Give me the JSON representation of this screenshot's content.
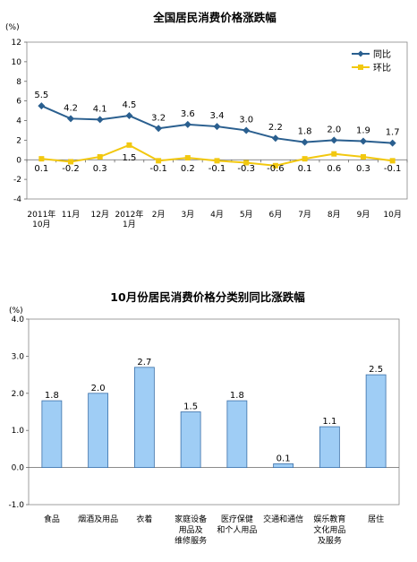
{
  "chart_data": [
    {
      "type": "line",
      "title": "全国居民消费价格涨跌幅",
      "unit_label": "(%)",
      "ylim": [
        -4,
        12
      ],
      "yticks": [
        -4,
        -2,
        0,
        2,
        4,
        6,
        8,
        10,
        12
      ],
      "categories": [
        [
          "2011年",
          "10月"
        ],
        [
          "11月"
        ],
        [
          "12月"
        ],
        [
          "2012年",
          "1月"
        ],
        [
          "2月"
        ],
        [
          "3月"
        ],
        [
          "4月"
        ],
        [
          "5月"
        ],
        [
          "6月"
        ],
        [
          "7月"
        ],
        [
          "8月"
        ],
        [
          "9月"
        ],
        [
          "10月"
        ]
      ],
      "legend_position": "top-right",
      "series": [
        {
          "name": "同比",
          "color": "#2a5f8f",
          "marker": "diamond",
          "values": [
            5.5,
            4.2,
            4.1,
            4.5,
            3.2,
            3.6,
            3.4,
            3.0,
            2.2,
            1.8,
            2.0,
            1.9,
            1.7
          ],
          "labels": [
            "5.5",
            "4.2",
            "4.1",
            "4.5",
            "3.2",
            "3.6",
            "3.4",
            "3.0",
            "2.2",
            "1.8",
            "2.0",
            "1.9",
            "1.7"
          ]
        },
        {
          "name": "环比",
          "color": "#f2c80f",
          "marker": "square",
          "values": [
            0.1,
            -0.2,
            0.3,
            1.5,
            -0.1,
            0.2,
            -0.1,
            -0.3,
            -0.6,
            0.1,
            0.6,
            0.3,
            -0.1
          ],
          "labels": [
            "0.1",
            "-0.2",
            "0.3",
            "1.5",
            "-0.1",
            "0.2",
            "-0.1",
            "-0.3",
            "-0.6",
            "0.1",
            "0.6",
            "0.3",
            "-0.1"
          ]
        }
      ]
    },
    {
      "type": "bar",
      "title": "10月份居民消费价格分类别同比涨跌幅",
      "unit_label": "(%)",
      "ylim": [
        -1.0,
        4.0
      ],
      "yticks": [
        "-1.0",
        "0.0",
        "1.0",
        "2.0",
        "3.0",
        "4.0"
      ],
      "categories": [
        [
          "食品"
        ],
        [
          "烟酒及用品"
        ],
        [
          "衣着"
        ],
        [
          "家庭设备",
          "用品及",
          "维修服务"
        ],
        [
          "医疗保健",
          "和个人用品"
        ],
        [
          "交通和通信"
        ],
        [
          "娱乐教育",
          "文化用品",
          "及服务"
        ],
        [
          "居住"
        ]
      ],
      "values": [
        1.8,
        2.0,
        2.7,
        1.5,
        1.8,
        0.1,
        1.1,
        2.5
      ],
      "labels": [
        "1.8",
        "2.0",
        "2.7",
        "1.5",
        "1.8",
        "0.1",
        "1.1",
        "2.5"
      ],
      "bar_color": "#9fcdf5",
      "bar_edge": "#3a6fa8"
    }
  ]
}
